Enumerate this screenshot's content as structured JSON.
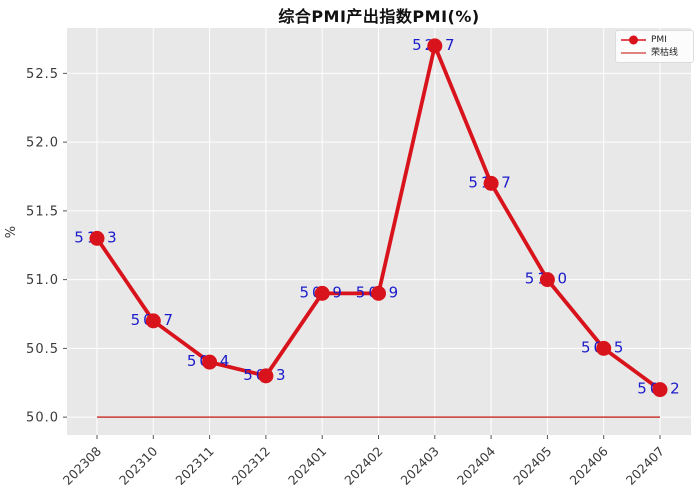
{
  "legend": {
    "items": [
      {
        "label": "PMI",
        "marker": "red-line-with-dot-icon"
      },
      {
        "label": "荣枯线",
        "marker": "red-line-icon"
      }
    ]
  },
  "colors": {
    "pmi_line": "#d8131b",
    "ref_line": "#cc3a33",
    "point_label": "#1b1bcb",
    "plot_background": "#e8e8e8",
    "gridline": "#ffffff",
    "tick_mark": "#555555",
    "tick_label": "#3a3a3a",
    "title_text": "#111111",
    "figure_background": "#ffffff"
  },
  "chart_data": {
    "type": "line",
    "title": "综合PMI产出指数PMI(%)",
    "xlabel": "",
    "ylabel": "%",
    "categories": [
      "202308",
      "202310",
      "202311",
      "202312",
      "202401",
      "202402",
      "202403",
      "202404",
      "202405",
      "202406",
      "202407"
    ],
    "series": [
      {
        "name": "PMI",
        "values": [
          51.3,
          50.7,
          50.4,
          50.3,
          50.9,
          50.9,
          52.7,
          51.7,
          51.0,
          50.5,
          50.2
        ],
        "color": "#d8131b",
        "marker": "circle",
        "point_labels_visible": true,
        "point_label_color": "#1b1bcb"
      }
    ],
    "reference_line": {
      "name": "荣枯线",
      "value": 50.0,
      "color": "#cc3a33"
    },
    "yticks": [
      50.0,
      50.5,
      51.0,
      51.5,
      52.0,
      52.5
    ],
    "ylim": [
      49.87,
      52.83
    ],
    "grid": true,
    "grid_color": "#ffffff",
    "plot_style": "gray-background-white-grid",
    "legend_position": "upper-right",
    "x_tick_label_rotation": 45
  }
}
